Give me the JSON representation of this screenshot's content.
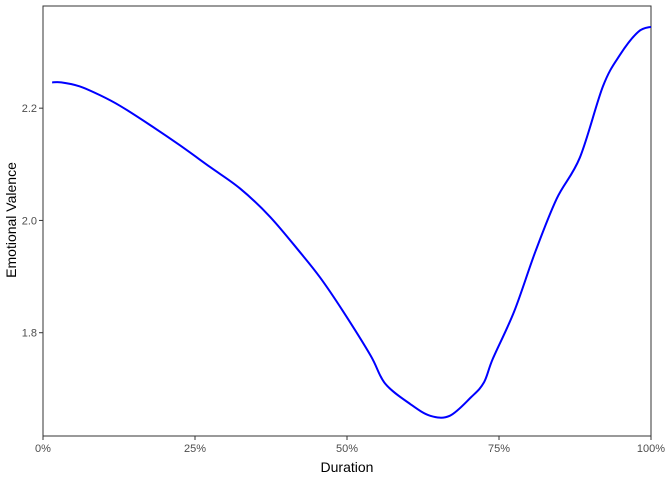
{
  "chart_data": {
    "type": "line",
    "title": "",
    "xlabel": "Duration",
    "ylabel": "Emotional Valence",
    "xlim": [
      0,
      100
    ],
    "ylim": [
      1.616,
      2.382
    ],
    "x_ticks": [
      0,
      25,
      50,
      75,
      100
    ],
    "x_tick_labels": [
      "0%",
      "25%",
      "50%",
      "75%",
      "100%"
    ],
    "y_ticks": [
      1.8,
      2.0,
      2.2
    ],
    "y_tick_labels": [
      "1.8",
      "2.0",
      "2.2"
    ],
    "grid": false,
    "line_color": "#0000FF",
    "series": [
      {
        "x": [
          1.5,
          3,
          6,
          9.4,
          12.7,
          17.6,
          22.5,
          27.5,
          32.4,
          37.3,
          42.3,
          45.6,
          49.3,
          53.9,
          56.3,
          60.4,
          63.7,
          66.9,
          70.4,
          72.5,
          74.0,
          77.5,
          81.0,
          84.5,
          88.3,
          92.1,
          94.9,
          97.9,
          100
        ],
        "y": [
          2.246,
          2.246,
          2.239,
          2.223,
          2.204,
          2.17,
          2.134,
          2.095,
          2.057,
          2.007,
          1.943,
          1.898,
          1.839,
          1.759,
          1.709,
          1.673,
          1.652,
          1.652,
          1.685,
          1.711,
          1.754,
          1.838,
          1.945,
          2.039,
          2.112,
          2.239,
          2.295,
          2.336,
          2.345
        ]
      }
    ]
  }
}
